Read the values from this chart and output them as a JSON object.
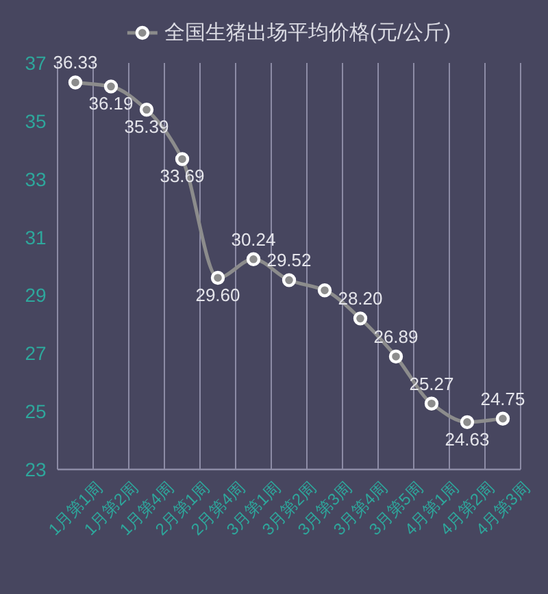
{
  "chart_data": {
    "type": "line",
    "categories": [
      "1月第1周",
      "1月第2周",
      "1月第4周",
      "2月第1周",
      "2月第4周",
      "3月第1周",
      "3月第2周",
      "3月第3周",
      "3月第4周",
      "3月第5周",
      "4月第1周",
      "4月第2周",
      "4月第3周"
    ],
    "series": [
      {
        "name": "全国生猪出场平均价格(元/公斤)",
        "color": "#8c8c8c",
        "values": [
          36.33,
          36.19,
          35.39,
          33.69,
          29.6,
          30.24,
          29.52,
          29.17,
          28.2,
          26.89,
          25.27,
          24.63,
          24.75
        ],
        "value_labels": [
          "36.33",
          "36.19",
          "35.39",
          "33.69",
          "29.60",
          "30.24",
          "29.52",
          null,
          "28.20",
          "26.89",
          "25.27",
          "24.63",
          "24.75"
        ]
      }
    ],
    "ylim": [
      23,
      37
    ],
    "yticks": [
      23,
      25,
      27,
      29,
      31,
      33,
      35,
      37
    ],
    "grid": "x",
    "legend": "top",
    "marker": "circle",
    "line_style": "solid"
  }
}
